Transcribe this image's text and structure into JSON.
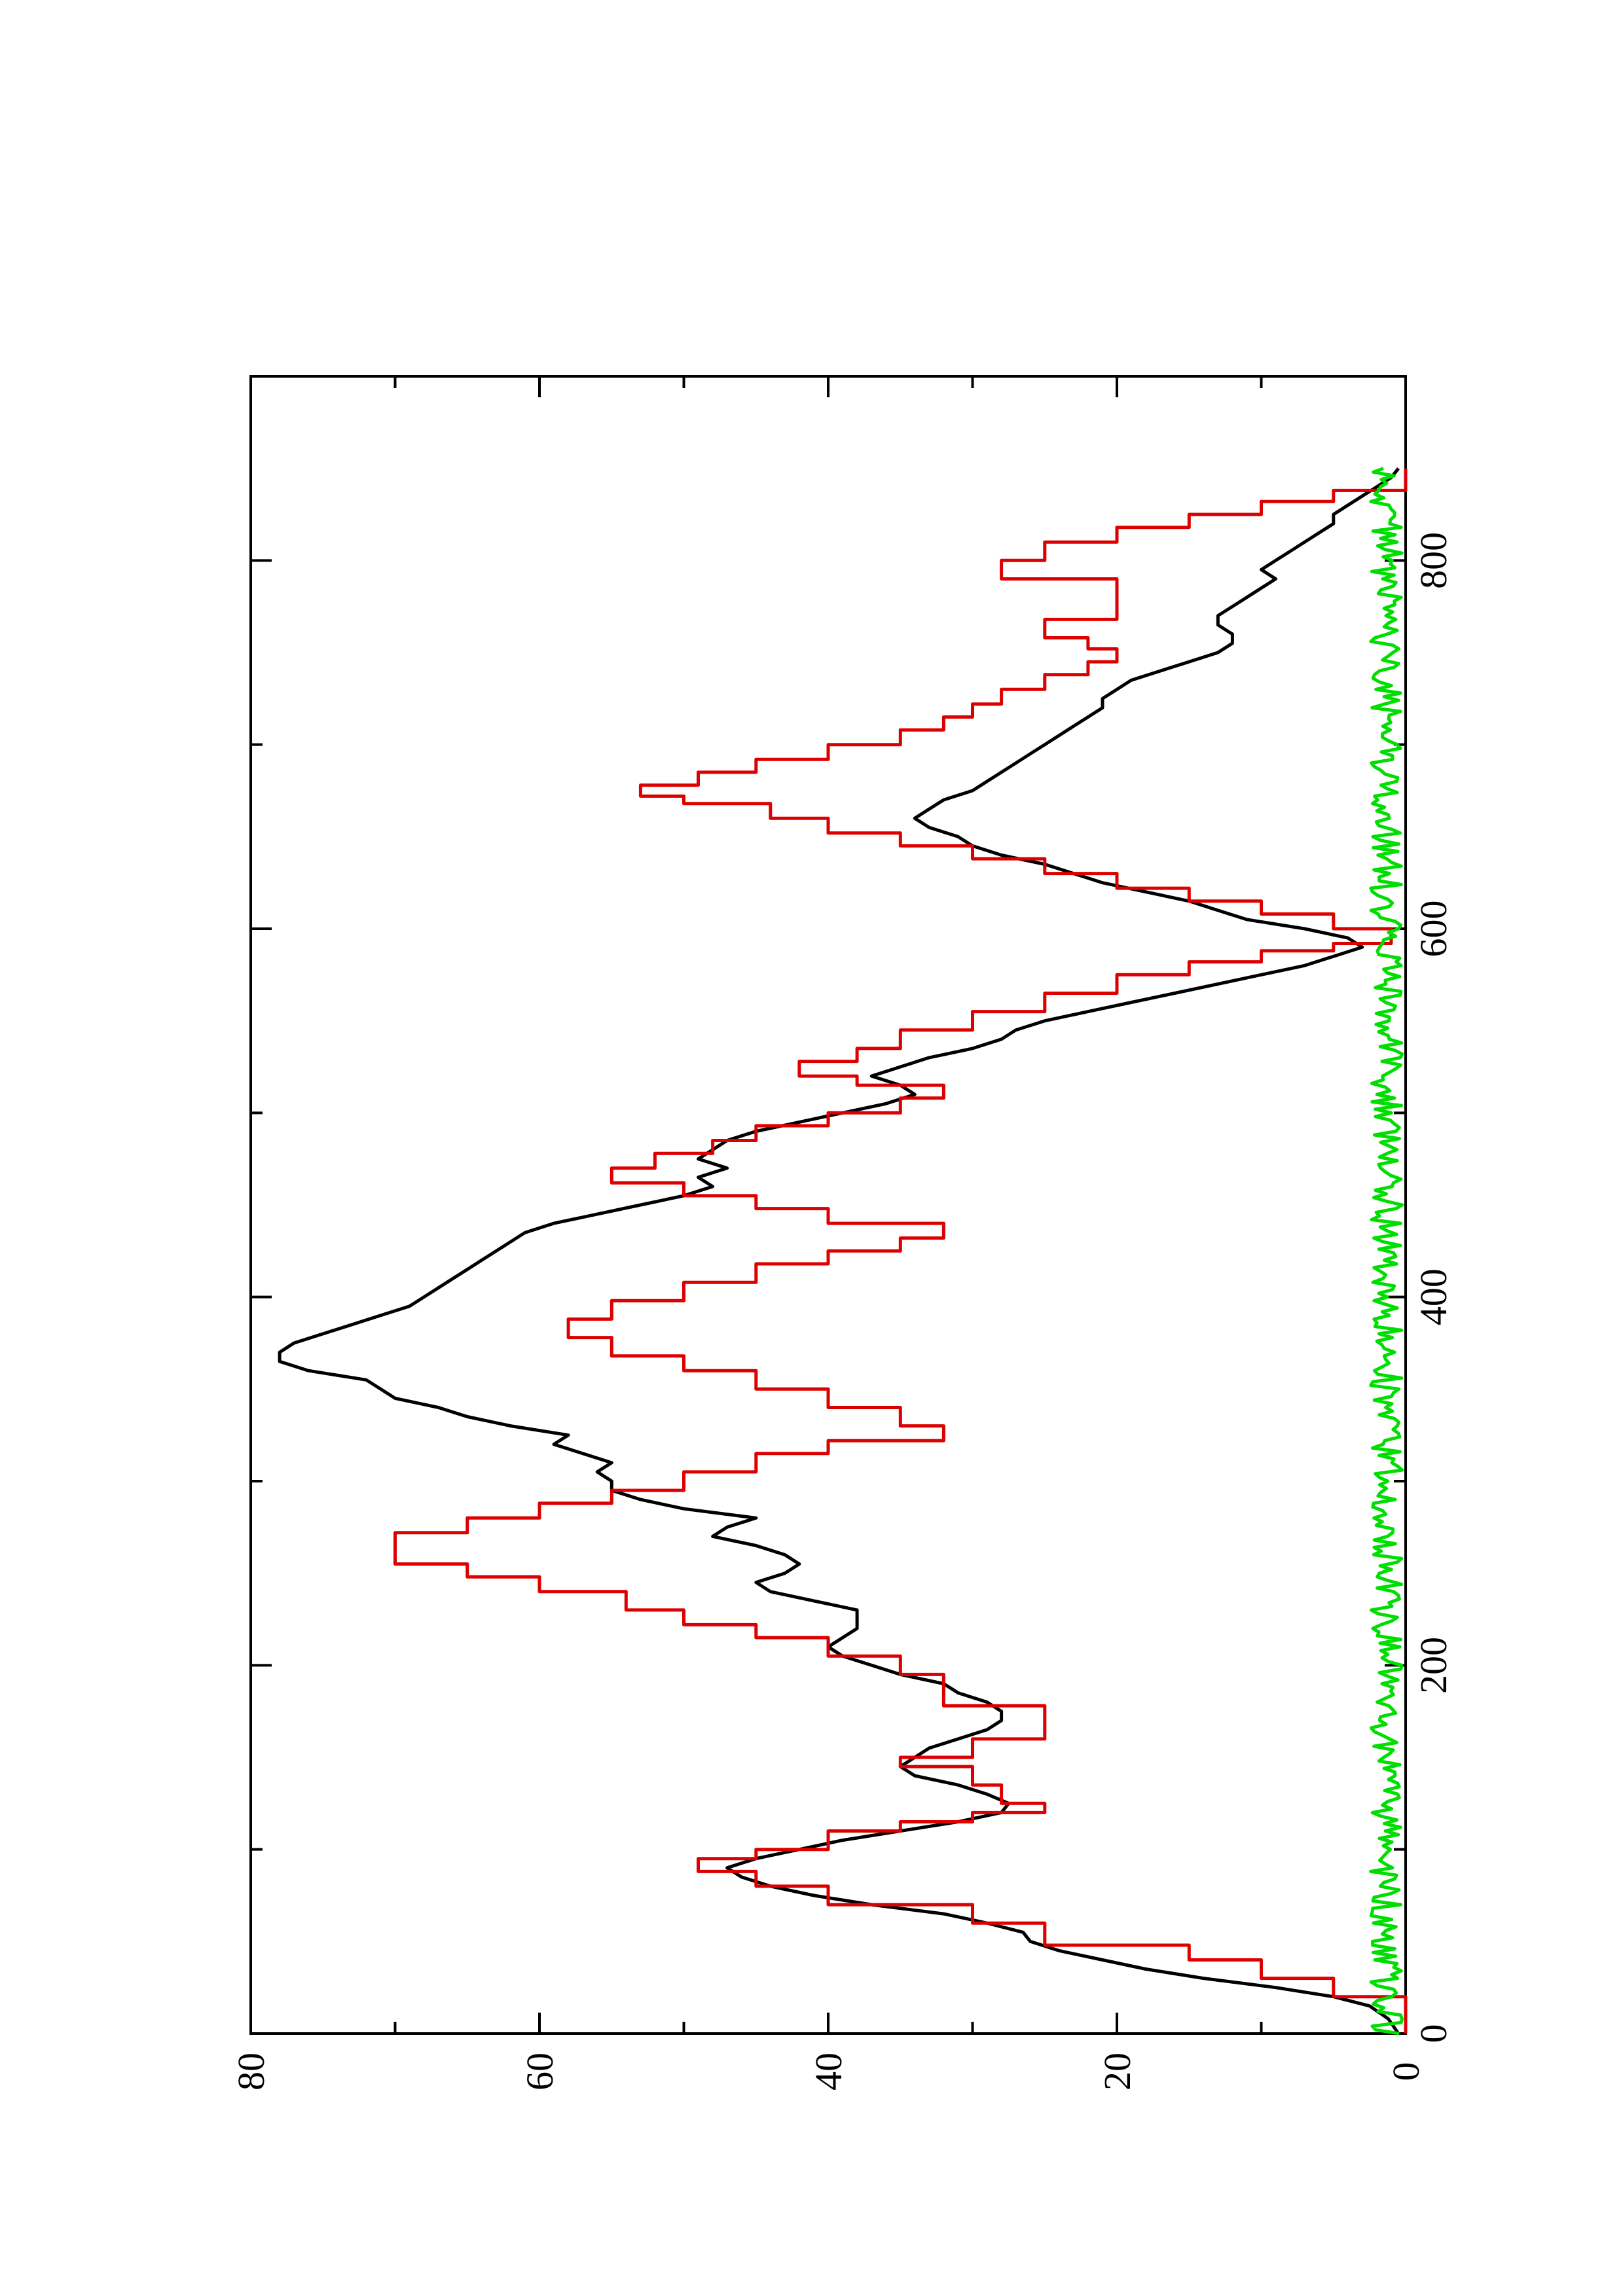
{
  "chart_data": {
    "type": "line",
    "orientation": "rotated-90-ccw",
    "title": "",
    "xlabel": "",
    "ylabel": "",
    "xlim": [
      0,
      900
    ],
    "ylim": [
      0,
      80
    ],
    "x_ticks": [
      0,
      200,
      400,
      600,
      800
    ],
    "y_ticks": [
      0,
      20,
      40,
      60,
      80
    ],
    "grid": false,
    "legend": "none",
    "series": [
      {
        "color": "#000000",
        "kind": "smooth",
        "points": [
          [
            0,
            0.5
          ],
          [
            8,
            1.2
          ],
          [
            15,
            2.5
          ],
          [
            20,
            5
          ],
          [
            25,
            9
          ],
          [
            30,
            14
          ],
          [
            35,
            18
          ],
          [
            40,
            21
          ],
          [
            45,
            24
          ],
          [
            50,
            26
          ],
          [
            55,
            26.5
          ],
          [
            60,
            29
          ],
          [
            65,
            32
          ],
          [
            70,
            37
          ],
          [
            75,
            41
          ],
          [
            80,
            44
          ],
          [
            85,
            46
          ],
          [
            90,
            47
          ],
          [
            95,
            45
          ],
          [
            100,
            42
          ],
          [
            105,
            39
          ],
          [
            110,
            35
          ],
          [
            115,
            31
          ],
          [
            120,
            28
          ],
          [
            125,
            27.5
          ],
          [
            130,
            29
          ],
          [
            135,
            31
          ],
          [
            140,
            34
          ],
          [
            145,
            35
          ],
          [
            150,
            34
          ],
          [
            155,
            33
          ],
          [
            160,
            31
          ],
          [
            165,
            29
          ],
          [
            170,
            28
          ],
          [
            175,
            28
          ],
          [
            180,
            29
          ],
          [
            185,
            31
          ],
          [
            190,
            32
          ],
          [
            195,
            35
          ],
          [
            200,
            37
          ],
          [
            205,
            39
          ],
          [
            210,
            40
          ],
          [
            215,
            39
          ],
          [
            220,
            38
          ],
          [
            230,
            38
          ],
          [
            235,
            41
          ],
          [
            240,
            44
          ],
          [
            245,
            45
          ],
          [
            250,
            43
          ],
          [
            255,
            42
          ],
          [
            260,
            43
          ],
          [
            265,
            45
          ],
          [
            270,
            48
          ],
          [
            275,
            47
          ],
          [
            280,
            45
          ],
          [
            285,
            50
          ],
          [
            290,
            53
          ],
          [
            295,
            55
          ],
          [
            300,
            55
          ],
          [
            305,
            56
          ],
          [
            310,
            55
          ],
          [
            315,
            57
          ],
          [
            320,
            59
          ],
          [
            325,
            58
          ],
          [
            330,
            62
          ],
          [
            335,
            65
          ],
          [
            340,
            67
          ],
          [
            345,
            70
          ],
          [
            350,
            71
          ],
          [
            355,
            72
          ],
          [
            360,
            76
          ],
          [
            365,
            78
          ],
          [
            370,
            78
          ],
          [
            375,
            77
          ],
          [
            380,
            75
          ],
          [
            385,
            73
          ],
          [
            390,
            71
          ],
          [
            395,
            69
          ],
          [
            400,
            68
          ],
          [
            405,
            67
          ],
          [
            410,
            66
          ],
          [
            415,
            65
          ],
          [
            420,
            64
          ],
          [
            425,
            63
          ],
          [
            430,
            62
          ],
          [
            435,
            61
          ],
          [
            440,
            59
          ],
          [
            445,
            56
          ],
          [
            450,
            53
          ],
          [
            455,
            50
          ],
          [
            460,
            48
          ],
          [
            465,
            49
          ],
          [
            470,
            47
          ],
          [
            475,
            49
          ],
          [
            480,
            48
          ],
          [
            485,
            47
          ],
          [
            490,
            45
          ],
          [
            495,
            42
          ],
          [
            500,
            39
          ],
          [
            505,
            36
          ],
          [
            510,
            34
          ],
          [
            515,
            35
          ],
          [
            520,
            37
          ],
          [
            525,
            35
          ],
          [
            530,
            33
          ],
          [
            535,
            30
          ],
          [
            540,
            28
          ],
          [
            545,
            27
          ],
          [
            550,
            25
          ],
          [
            555,
            22
          ],
          [
            560,
            19
          ],
          [
            565,
            16
          ],
          [
            570,
            13
          ],
          [
            575,
            10
          ],
          [
            580,
            7
          ],
          [
            585,
            5
          ],
          [
            590,
            3
          ],
          [
            595,
            4
          ],
          [
            600,
            7
          ],
          [
            605,
            11
          ],
          [
            610,
            13
          ],
          [
            615,
            15
          ],
          [
            620,
            18
          ],
          [
            625,
            21
          ],
          [
            630,
            23
          ],
          [
            635,
            25
          ],
          [
            640,
            28
          ],
          [
            645,
            30
          ],
          [
            650,
            31
          ],
          [
            655,
            33
          ],
          [
            660,
            34
          ],
          [
            665,
            33
          ],
          [
            670,
            32
          ],
          [
            675,
            30
          ],
          [
            680,
            29
          ],
          [
            685,
            28
          ],
          [
            690,
            27
          ],
          [
            695,
            26
          ],
          [
            700,
            25
          ],
          [
            705,
            24
          ],
          [
            710,
            23
          ],
          [
            715,
            22
          ],
          [
            720,
            21
          ],
          [
            725,
            21
          ],
          [
            730,
            20
          ],
          [
            735,
            19
          ],
          [
            740,
            17
          ],
          [
            745,
            15
          ],
          [
            750,
            13
          ],
          [
            755,
            12
          ],
          [
            760,
            12
          ],
          [
            765,
            13
          ],
          [
            770,
            13
          ],
          [
            775,
            12
          ],
          [
            780,
            11
          ],
          [
            785,
            10
          ],
          [
            790,
            9
          ],
          [
            795,
            10
          ],
          [
            800,
            9
          ],
          [
            805,
            8
          ],
          [
            810,
            7
          ],
          [
            815,
            6
          ],
          [
            820,
            5
          ],
          [
            825,
            5
          ],
          [
            830,
            4
          ],
          [
            835,
            3
          ],
          [
            840,
            2
          ],
          [
            845,
            1
          ],
          [
            850,
            0.5
          ]
        ]
      },
      {
        "color": "#dd0000",
        "kind": "step",
        "points": [
          [
            0,
            0
          ],
          [
            20,
            0
          ],
          [
            20,
            5
          ],
          [
            30,
            10
          ],
          [
            40,
            15
          ],
          [
            48,
            25
          ],
          [
            60,
            30
          ],
          [
            70,
            40
          ],
          [
            80,
            45
          ],
          [
            88,
            49
          ],
          [
            95,
            45
          ],
          [
            100,
            40
          ],
          [
            110,
            35
          ],
          [
            115,
            30
          ],
          [
            120,
            25
          ],
          [
            125,
            28
          ],
          [
            135,
            30
          ],
          [
            145,
            35
          ],
          [
            150,
            30
          ],
          [
            160,
            25
          ],
          [
            170,
            25
          ],
          [
            178,
            32
          ],
          [
            188,
            32
          ],
          [
            195,
            35
          ],
          [
            205,
            40
          ],
          [
            215,
            45
          ],
          [
            222,
            50
          ],
          [
            230,
            54
          ],
          [
            240,
            60
          ],
          [
            248,
            65
          ],
          [
            255,
            70
          ],
          [
            265,
            70
          ],
          [
            272,
            65
          ],
          [
            280,
            60
          ],
          [
            288,
            55
          ],
          [
            295,
            50
          ],
          [
            305,
            45
          ],
          [
            315,
            40
          ],
          [
            322,
            32
          ],
          [
            330,
            35
          ],
          [
            340,
            40
          ],
          [
            350,
            45
          ],
          [
            360,
            50
          ],
          [
            368,
            55
          ],
          [
            378,
            58
          ],
          [
            388,
            55
          ],
          [
            398,
            50
          ],
          [
            408,
            45
          ],
          [
            418,
            40
          ],
          [
            425,
            35
          ],
          [
            432,
            32
          ],
          [
            440,
            40
          ],
          [
            448,
            45
          ],
          [
            455,
            50
          ],
          [
            462,
            55
          ],
          [
            470,
            52
          ],
          [
            478,
            48
          ],
          [
            485,
            45
          ],
          [
            493,
            40
          ],
          [
            500,
            35
          ],
          [
            508,
            32
          ],
          [
            515,
            38
          ],
          [
            520,
            42
          ],
          [
            528,
            38
          ],
          [
            535,
            35
          ],
          [
            545,
            30
          ],
          [
            555,
            25
          ],
          [
            565,
            20
          ],
          [
            575,
            15
          ],
          [
            582,
            10
          ],
          [
            588,
            5
          ],
          [
            592,
            1
          ],
          [
            600,
            5
          ],
          [
            608,
            10
          ],
          [
            615,
            15
          ],
          [
            622,
            20
          ],
          [
            630,
            25
          ],
          [
            638,
            30
          ],
          [
            645,
            35
          ],
          [
            652,
            40
          ],
          [
            660,
            44
          ],
          [
            668,
            50
          ],
          [
            672,
            53
          ],
          [
            678,
            49
          ],
          [
            685,
            45
          ],
          [
            692,
            40
          ],
          [
            700,
            35
          ],
          [
            708,
            32
          ],
          [
            715,
            30
          ],
          [
            722,
            28
          ],
          [
            730,
            25
          ],
          [
            738,
            22
          ],
          [
            745,
            20
          ],
          [
            752,
            22
          ],
          [
            758,
            25
          ],
          [
            768,
            20
          ],
          [
            780,
            20
          ],
          [
            790,
            28
          ],
          [
            800,
            25
          ],
          [
            810,
            20
          ],
          [
            818,
            15
          ],
          [
            825,
            10
          ],
          [
            832,
            5
          ],
          [
            838,
            0
          ],
          [
            850,
            0
          ]
        ]
      },
      {
        "color": "#00dd00",
        "kind": "noise",
        "amplitude": 2.2,
        "points": [
          [
            0,
            1
          ],
          [
            50,
            1
          ],
          [
            100,
            1
          ],
          [
            150,
            1
          ],
          [
            200,
            1
          ],
          [
            250,
            1
          ],
          [
            300,
            1
          ],
          [
            350,
            1
          ],
          [
            400,
            1
          ],
          [
            450,
            1
          ],
          [
            500,
            1
          ],
          [
            550,
            1
          ],
          [
            600,
            1
          ],
          [
            650,
            1
          ],
          [
            700,
            1
          ],
          [
            750,
            1
          ],
          [
            800,
            1
          ],
          [
            850,
            1
          ]
        ]
      }
    ]
  }
}
